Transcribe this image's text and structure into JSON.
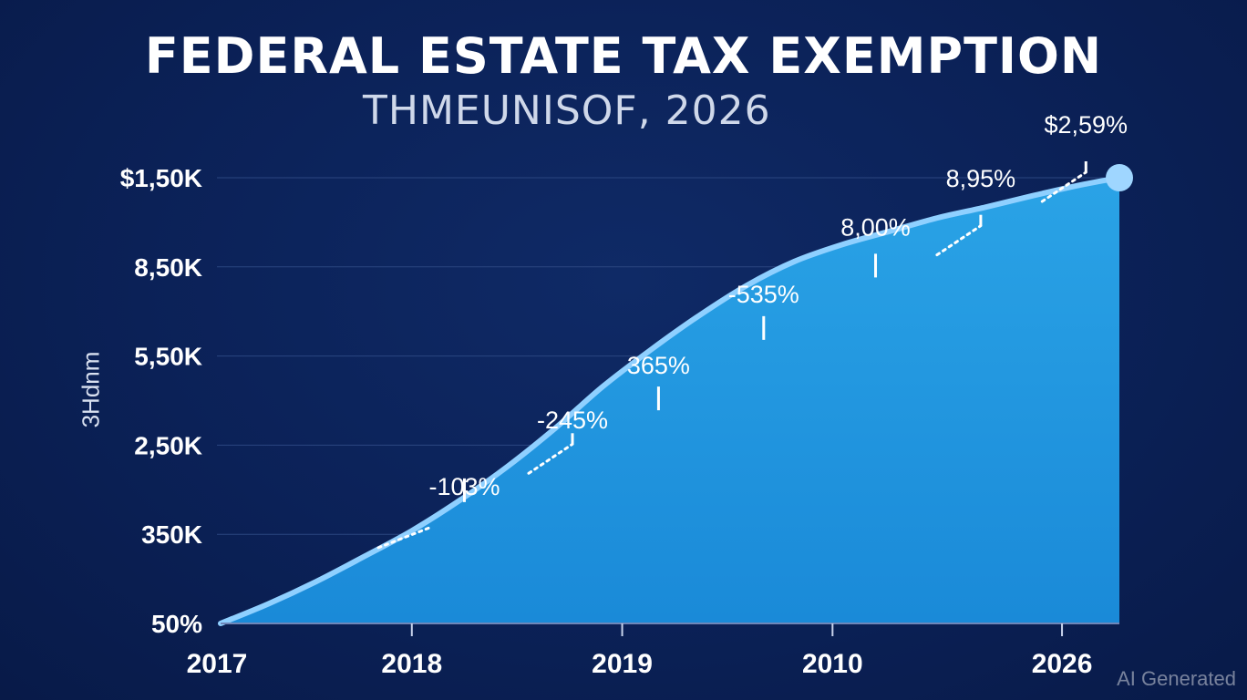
{
  "chart_data": {
    "type": "area",
    "title": "FEDERAL ESTATE TAX EXEMPTION",
    "subtitle": "THMEUNISOF, 2026",
    "ylabel": "3Hdnm",
    "xlabel": "",
    "y_tick_labels": [
      "50%",
      "350K",
      "2,50K",
      "5,50K",
      "8,50K",
      "$1,50K"
    ],
    "x_tick_labels": [
      "2017",
      "2018",
      "2019",
      "2010",
      "2026"
    ],
    "ylim": [
      0,
      5
    ],
    "x": [
      0,
      0.5,
      1.0,
      1.5,
      2.0,
      2.5,
      3.0,
      3.5,
      4.0,
      4.5,
      5.0,
      5.5,
      6.0,
      6.5,
      7.0,
      7.5,
      8.0,
      8.5,
      9.0,
      9.4
    ],
    "values": [
      0.0,
      0.22,
      0.47,
      0.75,
      1.04,
      1.38,
      1.76,
      2.19,
      2.66,
      3.07,
      3.45,
      3.79,
      4.06,
      4.25,
      4.4,
      4.55,
      4.67,
      4.8,
      4.92,
      5.0
    ],
    "data_labels": [
      {
        "text": "-103%",
        "x": 2.55,
        "y": 1.3,
        "y_text": 1.44,
        "connector": "solid"
      },
      {
        "text": "-245%",
        "x": 3.68,
        "y": 1.95,
        "y_text": 2.19,
        "connector": "dotted"
      },
      {
        "text": "365%",
        "x": 4.58,
        "y": 2.33,
        "y_text": 2.8,
        "connector": "solid"
      },
      {
        "text": "-535%",
        "x": 5.68,
        "y": 3.12,
        "y_text": 3.6,
        "connector": "solid"
      },
      {
        "text": "8,00%",
        "x": 6.85,
        "y": 3.82,
        "y_text": 4.35,
        "connector": "solid"
      },
      {
        "text": "8,95%",
        "x": 7.95,
        "y": 4.4,
        "y_text": 4.9,
        "connector": "dotted"
      },
      {
        "text": "$2,59%",
        "x": 9.05,
        "y": 5.0,
        "y_text": 5.5,
        "connector": "dotted"
      }
    ],
    "end_marker": "circle",
    "grid": "horizontal",
    "colors": {
      "fill_top": "#2aa3e6",
      "fill_bottom": "#1a8ad8",
      "line": "#8fd0ff",
      "marker": "#9fd6ff",
      "grid": "#2b4680"
    }
  },
  "watermark": "AI Generated"
}
